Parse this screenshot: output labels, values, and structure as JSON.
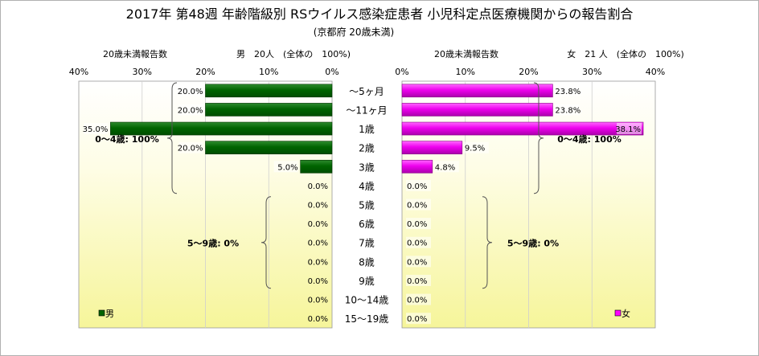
{
  "title": "2017年 第48週 年齢階級別 RSウイルス感染症患者 小児科定点医療機関からの報告割合",
  "subtitle": "(京都府 20歳未満)",
  "chart_data": [
    {
      "type": "bar",
      "orientation": "horizontal",
      "direction": "right-to-left",
      "header_left": "20歳未満報告数",
      "header_right": "男　20人　(全体の　100%)",
      "categories": [
        "～5ヶ月",
        "～11ヶ月",
        "1歳",
        "2歳",
        "3歳",
        "4歳",
        "5歳",
        "6歳",
        "7歳",
        "8歳",
        "9歳",
        "10～14歳",
        "15～19歳"
      ],
      "series": [
        {
          "name": "男",
          "color": "#006400",
          "values": [
            20.0,
            20.0,
            35.0,
            20.0,
            5.0,
            0.0,
            0.0,
            0.0,
            0.0,
            0.0,
            0.0,
            0.0,
            0.0
          ],
          "labels": [
            "20.0%",
            "20.0%",
            "35.0%",
            "20.0%",
            "5.0%",
            "0.0%",
            "0.0%",
            "0.0%",
            "0.0%",
            "0.0%",
            "0.0%",
            "0.0%",
            "0.0%"
          ]
        }
      ],
      "xlim": [
        0,
        40
      ],
      "ticks": [
        "40%",
        "30%",
        "20%",
        "10%",
        "0%"
      ],
      "grid": true,
      "annotations": [
        "0～4歳: 100%",
        "5～9歳: 0%"
      ],
      "legend_position": "bottom-left"
    },
    {
      "type": "bar",
      "orientation": "horizontal",
      "direction": "left-to-right",
      "header_left": "20歳未満報告数",
      "header_right": "女　21 人　(全体の　100%)",
      "categories": [
        "～5ヶ月",
        "～11ヶ月",
        "1歳",
        "2歳",
        "3歳",
        "4歳",
        "5歳",
        "6歳",
        "7歳",
        "8歳",
        "9歳",
        "10～14歳",
        "15～19歳"
      ],
      "series": [
        {
          "name": "女",
          "color": "#ff00ff",
          "values": [
            23.8,
            23.8,
            38.1,
            9.5,
            4.8,
            0.0,
            0.0,
            0.0,
            0.0,
            0.0,
            0.0,
            0.0,
            0.0
          ],
          "labels": [
            "23.8%",
            "23.8%",
            "38.1%",
            "9.5%",
            "4.8%",
            "0.0%",
            "0.0%",
            "0.0%",
            "0.0%",
            "0.0%",
            "0.0%",
            "0.0%",
            "0.0%"
          ]
        }
      ],
      "xlim": [
        0,
        40
      ],
      "ticks": [
        "0%",
        "10%",
        "20%",
        "30%",
        "40%"
      ],
      "grid": true,
      "annotations": [
        "0～4歳: 100%",
        "5～9歳: 0%"
      ],
      "legend_position": "bottom-right"
    }
  ]
}
